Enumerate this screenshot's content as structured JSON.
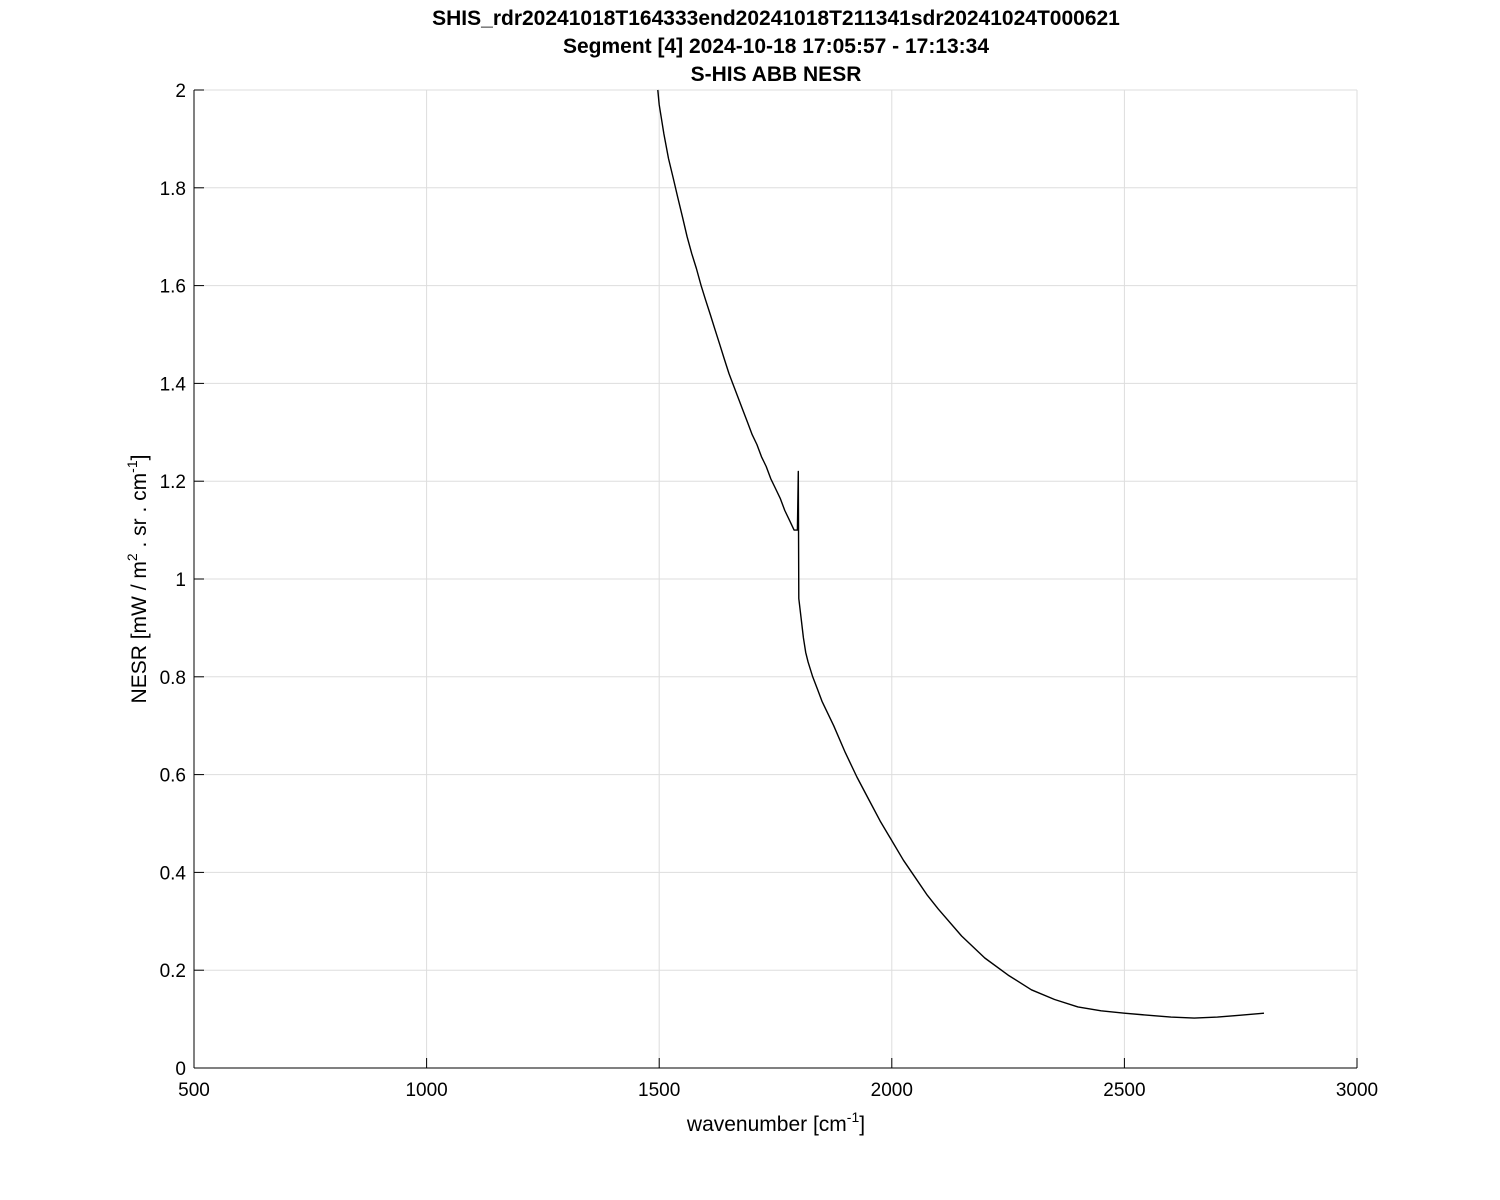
{
  "chart_data": {
    "type": "line",
    "title": [
      "SHIS_rdr20241018T164333end20241018T211341sdr20241024T000621",
      "Segment [4] 2024-10-18 17:05:57 - 17:13:34",
      "S-HIS ABB NESR"
    ],
    "xlabel": {
      "pre": "wavenumber [cm",
      "sup": "-1",
      "post": "]"
    },
    "ylabel": {
      "pre": "NESR [mW / m",
      "sup1": "2",
      "mid": " . sr . cm",
      "sup2": "-1",
      "post": "]"
    },
    "xlim": [
      500,
      3000
    ],
    "ylim": [
      0,
      2
    ],
    "xticks": [
      500,
      1000,
      1500,
      2000,
      2500,
      3000
    ],
    "xtick_labels": [
      "500",
      "1000",
      "1500",
      "2000",
      "2500",
      "3000"
    ],
    "yticks": [
      0,
      0.2,
      0.4,
      0.6,
      0.8,
      1,
      1.2,
      1.4,
      1.6,
      1.8,
      2
    ],
    "ytick_labels": [
      "0",
      "0.2",
      "0.4",
      "0.6",
      "0.8",
      "1",
      "1.2",
      "1.4",
      "1.6",
      "1.8",
      "2"
    ],
    "grid": true,
    "line_color": "#000000",
    "grid_color": "#dddddd",
    "series": [
      {
        "x": [
          1497,
          1500,
          1510,
          1520,
          1530,
          1540,
          1550,
          1560,
          1570,
          1580,
          1590,
          1600,
          1610,
          1620,
          1630,
          1640,
          1650,
          1660,
          1670,
          1680,
          1690,
          1700,
          1710,
          1720,
          1730,
          1740,
          1750,
          1760,
          1770,
          1780,
          1790,
          1797,
          1799,
          1800,
          1805,
          1810,
          1815,
          1820,
          1830,
          1840,
          1850,
          1875,
          1900,
          1925,
          1950,
          1975,
          2000,
          2025,
          2050,
          2075,
          2100,
          2150,
          2200,
          2250,
          2300,
          2350,
          2400,
          2450,
          2500,
          2550,
          2600,
          2650,
          2700,
          2750,
          2800
        ],
        "y": [
          2.0,
          1.97,
          1.91,
          1.86,
          1.82,
          1.78,
          1.74,
          1.7,
          1.665,
          1.635,
          1.6,
          1.57,
          1.54,
          1.51,
          1.48,
          1.45,
          1.42,
          1.395,
          1.37,
          1.345,
          1.32,
          1.295,
          1.275,
          1.25,
          1.23,
          1.205,
          1.185,
          1.165,
          1.14,
          1.12,
          1.1,
          1.1,
          1.22,
          0.96,
          0.92,
          0.88,
          0.85,
          0.83,
          0.8,
          0.775,
          0.75,
          0.7,
          0.645,
          0.595,
          0.55,
          0.505,
          0.465,
          0.425,
          0.39,
          0.355,
          0.325,
          0.27,
          0.225,
          0.19,
          0.16,
          0.14,
          0.125,
          0.117,
          0.112,
          0.108,
          0.104,
          0.102,
          0.104,
          0.108,
          0.112
        ]
      }
    ]
  }
}
